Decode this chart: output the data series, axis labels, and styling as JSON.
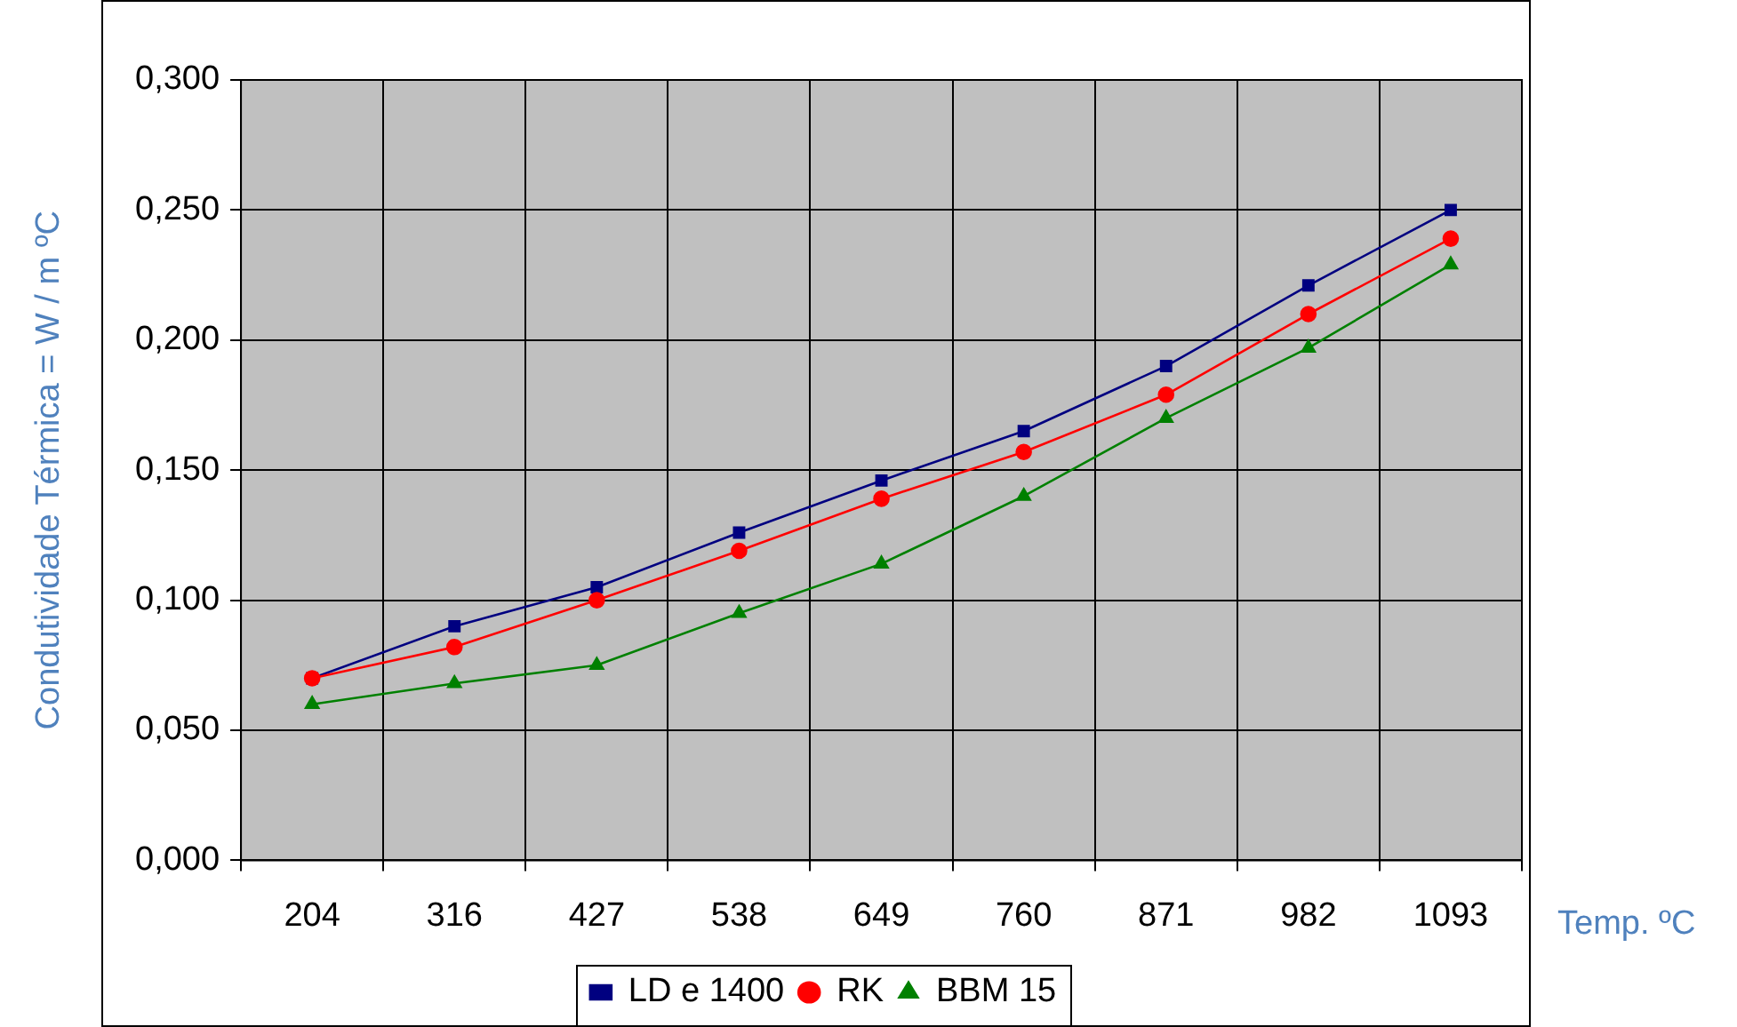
{
  "chart_data": {
    "type": "line",
    "xlabel": "Temp. ºC",
    "ylabel": "Condutividade Térmica = W / m ºC",
    "categories": [
      "204",
      "316",
      "427",
      "538",
      "649",
      "760",
      "871",
      "982",
      "1093"
    ],
    "series": [
      {
        "name": "LD e 1400",
        "color": "#000080",
        "marker": "square",
        "values": [
          0.07,
          0.09,
          0.105,
          0.126,
          0.146,
          0.165,
          0.19,
          0.221,
          0.25
        ]
      },
      {
        "name": "RK",
        "color": "#ff0000",
        "marker": "circle",
        "values": [
          0.07,
          0.082,
          0.1,
          0.119,
          0.139,
          0.157,
          0.179,
          0.21,
          0.239
        ]
      },
      {
        "name": "BBM 15",
        "color": "#008000",
        "marker": "triangle",
        "values": [
          0.06,
          0.068,
          0.075,
          0.095,
          0.114,
          0.14,
          0.17,
          0.197,
          0.229
        ]
      }
    ],
    "ylim": [
      0,
      0.3
    ],
    "yticks": [
      {
        "value": 0,
        "label": "0,000"
      },
      {
        "value": 0.05,
        "label": "0,050"
      },
      {
        "value": 0.1,
        "label": "0,100"
      },
      {
        "value": 0.15,
        "label": "0,150"
      },
      {
        "value": 0.2,
        "label": "0,200"
      },
      {
        "value": 0.25,
        "label": "0,250"
      },
      {
        "value": 0.3,
        "label": "0,300"
      }
    ],
    "grid": true,
    "legend": "bottom",
    "line_style": "solid"
  }
}
